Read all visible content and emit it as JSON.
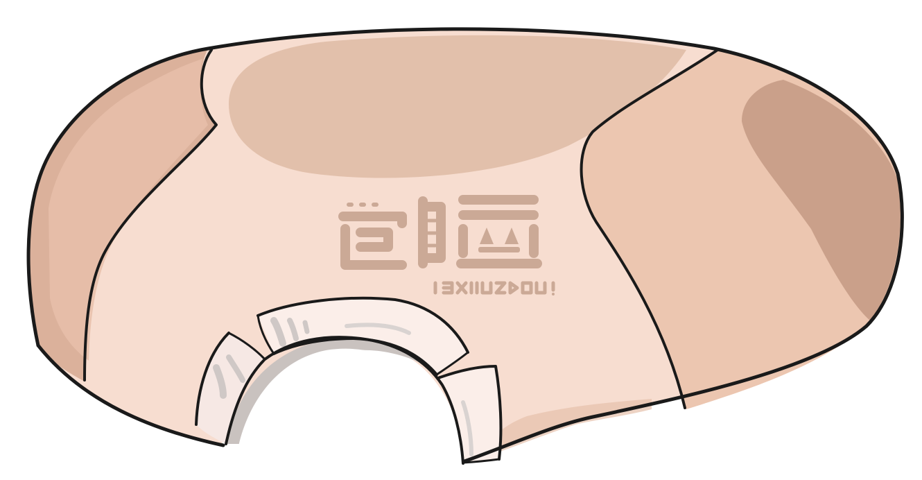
{
  "illustration": {
    "subject": "",
    "colors": {
      "background": "#ffffff",
      "outline": "#1a1a1a",
      "body_light": "#f7ddd0",
      "body_mid": "#ecc6b0",
      "body_shadow": "#d6ab94",
      "top_patch": "#e2c0ab",
      "side_dark": "#caa08a",
      "arch_stone": "#fbeee9",
      "arch_shadow": "#c9c2bf",
      "emblem": "#cba996"
    },
    "emblem": {
      "logo_text": "",
      "tagline": ""
    }
  }
}
